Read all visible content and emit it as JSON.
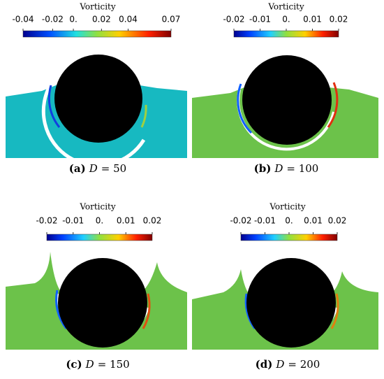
{
  "panels": [
    {
      "colorbar_title": "Vorticity",
      "ticks": [
        "-0.04",
        "-0.02",
        "0.",
        "0.02",
        "0.04",
        "0.07"
      ],
      "caption": {
        "tag": "(a)",
        "var": "D",
        "rest": "= 50"
      }
    },
    {
      "colorbar_title": "Vorticity",
      "ticks": [
        "-0.02",
        "-0.01",
        "0.",
        "0.01",
        "0.02"
      ],
      "caption": {
        "tag": "(b)",
        "var": "D",
        "rest": "= 100"
      }
    },
    {
      "colorbar_title": "Vorticity",
      "ticks": [
        "-0.02",
        "-0.01",
        "0.",
        "0.01",
        "0.02"
      ],
      "caption": {
        "tag": "(c)",
        "var": "D",
        "rest": "= 150"
      }
    },
    {
      "colorbar_title": "Vorticity",
      "ticks": [
        "-0.02",
        "-0.01",
        "0.",
        "0.01",
        "0.02"
      ],
      "caption": {
        "tag": "(d)",
        "var": "D",
        "rest": "= 200"
      }
    }
  ]
}
